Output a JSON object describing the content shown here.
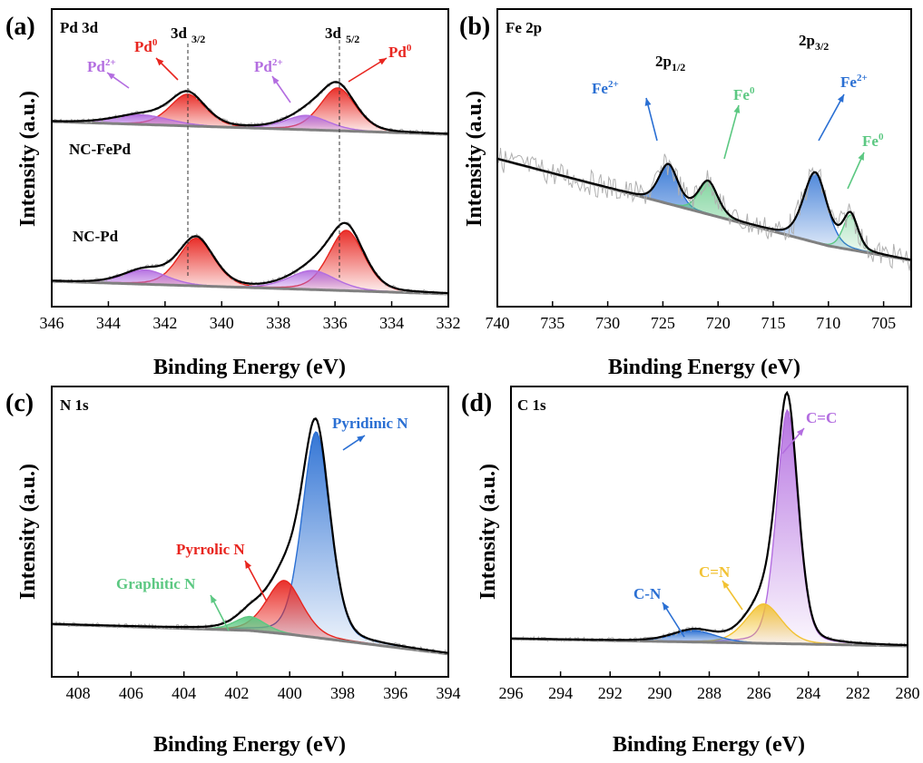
{
  "colors": {
    "pd0": "#e8251f",
    "pd2": "#b36de0",
    "fe2": "#2a6fd3",
    "fe0": "#5cc882",
    "pyridinic": "#2a6fd3",
    "pyrrolic": "#e8251f",
    "graphitic": "#5cc882",
    "cc": "#b36de0",
    "cn_double": "#f2c233",
    "cn_single": "#2a6fd3",
    "envelope": "#000000",
    "background": "#808080",
    "raw": "#b0b0b0"
  },
  "chart_data": [
    {
      "type": "line",
      "panel": "(a)",
      "title": "Pd 3d",
      "xlabel": "Binding Energy (eV)",
      "ylabel": "Intensity (a.u.)",
      "xlim": [
        346,
        332
      ],
      "ylim": [
        0,
        10
      ],
      "xticks": [
        346,
        344,
        342,
        340,
        338,
        336,
        334,
        332
      ],
      "xtick_labels": [
        "346",
        "344",
        "342",
        "340",
        "338",
        "336",
        "334",
        "332"
      ],
      "samples": [
        "NC-FePd",
        "NC-Pd"
      ],
      "offsets": [
        5.8,
        0
      ],
      "peaks": [
        {
          "sample": "NC-FePd",
          "label": "Pd0",
          "center": 341.2,
          "height": 2.0,
          "width": 0.65,
          "color": "pd0"
        },
        {
          "sample": "NC-FePd",
          "label": "Pd0",
          "center": 335.9,
          "height": 2.7,
          "width": 0.65,
          "color": "pd0"
        },
        {
          "sample": "NC-FePd",
          "label": "Pd2+",
          "center": 342.8,
          "height": 0.6,
          "width": 1.0,
          "color": "pd2"
        },
        {
          "sample": "NC-FePd",
          "label": "Pd2+",
          "center": 337.0,
          "height": 0.9,
          "width": 0.8,
          "color": "pd2"
        },
        {
          "sample": "NC-Pd",
          "label": "Pd0",
          "center": 340.9,
          "height": 3.0,
          "width": 0.65,
          "color": "pd0"
        },
        {
          "sample": "NC-Pd",
          "label": "Pd0",
          "center": 335.6,
          "height": 3.8,
          "width": 0.65,
          "color": "pd0"
        },
        {
          "sample": "NC-Pd",
          "label": "Pd2+",
          "center": 342.7,
          "height": 0.9,
          "width": 0.8,
          "color": "pd2"
        },
        {
          "sample": "NC-Pd",
          "label": "Pd2+",
          "center": 336.8,
          "height": 1.2,
          "width": 0.85,
          "color": "pd2"
        }
      ],
      "annotations": {
        "title": "Pd 3d",
        "d32": "3d",
        "d32_sub": "3/2",
        "d52": "3d",
        "d52_sub": "5/2",
        "pd0_left": "Pd",
        "pd0_left_sup": "0",
        "pd0_right": "Pd",
        "pd0_right_sup": "0",
        "pd2_left": "Pd",
        "pd2_left_sup": "2+",
        "pd2_right": "Pd",
        "pd2_right_sup": "2+",
        "sample1": "NC-FePd",
        "sample2": "NC-Pd"
      }
    },
    {
      "type": "line",
      "panel": "(b)",
      "title": "Fe 2p",
      "xlabel": "Binding Energy (eV)",
      "ylabel": "Intensity (a.u.)",
      "xlim": [
        740,
        702.5
      ],
      "ylim": [
        0,
        10
      ],
      "xticks": [
        740,
        735,
        730,
        725,
        720,
        715,
        710,
        705
      ],
      "xtick_labels": [
        "740",
        "735",
        "730",
        "725",
        "720",
        "715",
        "710",
        "705"
      ],
      "peaks": [
        {
          "label": "Fe2+",
          "center": 724.5,
          "height": 1.8,
          "width": 0.9,
          "color": "fe2"
        },
        {
          "label": "Fe0",
          "center": 720.9,
          "height": 1.5,
          "width": 0.9,
          "color": "fe0"
        },
        {
          "label": "Fe2+",
          "center": 711.2,
          "height": 3.2,
          "width": 1.1,
          "color": "fe2"
        },
        {
          "label": "Fe0",
          "center": 708.0,
          "height": 1.6,
          "width": 0.7,
          "color": "fe0"
        }
      ],
      "annotations": {
        "title": "Fe 2p",
        "p12": "2p",
        "p12_sub": "1/2",
        "p32": "2p",
        "p32_sub": "3/2",
        "fe2_left": "Fe",
        "fe2_left_sup": "2+",
        "fe0_left": "Fe",
        "fe0_left_sup": "0",
        "fe2_right": "Fe",
        "fe2_right_sup": "2+",
        "fe0_right": "Fe",
        "fe0_right_sup": "0"
      }
    },
    {
      "type": "line",
      "panel": "(c)",
      "title": "N 1s",
      "xlabel": "Binding Energy (eV)",
      "ylabel": "Intensity (a.u.)",
      "xlim": [
        409,
        394
      ],
      "ylim": [
        0,
        10
      ],
      "xticks": [
        408,
        406,
        404,
        402,
        400,
        398,
        396,
        394
      ],
      "xtick_labels": [
        "408",
        "406",
        "404",
        "402",
        "400",
        "398",
        "396",
        "394"
      ],
      "peaks": [
        {
          "label": "Pyridinic N",
          "center": 399.0,
          "height": 8.1,
          "width": 0.55,
          "color": "pyridinic"
        },
        {
          "label": "Pyrrolic N",
          "center": 400.2,
          "height": 2.1,
          "width": 0.7,
          "color": "pyrrolic"
        },
        {
          "label": "Graphitic N",
          "center": 401.5,
          "height": 0.55,
          "width": 0.6,
          "color": "graphitic"
        }
      ],
      "annotations": {
        "title": "N 1s",
        "pyridinic": "Pyridinic N",
        "pyrrolic": "Pyrrolic N",
        "graphitic": "Graphitic N"
      }
    },
    {
      "type": "line",
      "panel": "(d)",
      "title": "C 1s",
      "xlabel": "Binding Energy (eV)",
      "ylabel": "Intensity (a.u.)",
      "xlim": [
        296,
        280
      ],
      "ylim": [
        0,
        10
      ],
      "xticks": [
        296,
        294,
        292,
        290,
        288,
        286,
        284,
        282,
        280
      ],
      "xtick_labels": [
        "296",
        "294",
        "292",
        "290",
        "288",
        "286",
        "284",
        "282",
        "280"
      ],
      "peaks": [
        {
          "label": "C=C",
          "center": 284.85,
          "height": 9.2,
          "width": 0.45,
          "color": "cc"
        },
        {
          "label": "C=N",
          "center": 285.8,
          "height": 1.55,
          "width": 0.75,
          "color": "cn_double"
        },
        {
          "label": "C-N",
          "center": 288.6,
          "height": 0.45,
          "width": 0.9,
          "color": "cn_single"
        }
      ],
      "annotations": {
        "title": "C 1s",
        "cc": "C=C",
        "cn_double": "C=N",
        "cn_single": "C-N"
      }
    }
  ]
}
